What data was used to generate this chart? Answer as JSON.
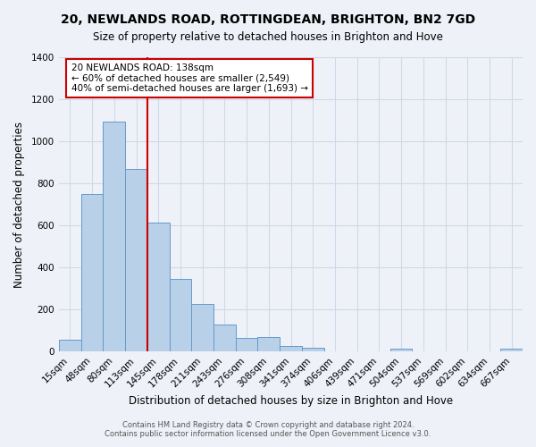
{
  "title": "20, NEWLANDS ROAD, ROTTINGDEAN, BRIGHTON, BN2 7GD",
  "subtitle": "Size of property relative to detached houses in Brighton and Hove",
  "xlabel": "Distribution of detached houses by size in Brighton and Hove",
  "ylabel": "Number of detached properties",
  "bar_labels": [
    "15sqm",
    "48sqm",
    "80sqm",
    "113sqm",
    "145sqm",
    "178sqm",
    "211sqm",
    "243sqm",
    "276sqm",
    "308sqm",
    "341sqm",
    "374sqm",
    "406sqm",
    "439sqm",
    "471sqm",
    "504sqm",
    "537sqm",
    "569sqm",
    "602sqm",
    "634sqm",
    "667sqm"
  ],
  "bar_values": [
    55,
    750,
    1095,
    870,
    615,
    345,
    228,
    130,
    65,
    68,
    25,
    20,
    0,
    0,
    0,
    15,
    0,
    0,
    0,
    0,
    15
  ],
  "bar_color": "#b8d0e8",
  "bar_edge_color": "#6699cc",
  "vline_x": 3.5,
  "vline_color": "#cc0000",
  "annotation_title": "20 NEWLANDS ROAD: 138sqm",
  "annotation_line1": "← 60% of detached houses are smaller (2,549)",
  "annotation_line2": "40% of semi-detached houses are larger (1,693) →",
  "annotation_box_color": "#ffffff",
  "annotation_box_edge": "#cc0000",
  "ylim": [
    0,
    1400
  ],
  "yticks": [
    0,
    200,
    400,
    600,
    800,
    1000,
    1200,
    1400
  ],
  "footer1": "Contains HM Land Registry data © Crown copyright and database right 2024.",
  "footer2": "Contains public sector information licensed under the Open Government Licence v3.0.",
  "bg_color": "#eef2f8",
  "grid_color": "#d0d8e8",
  "title_fontsize": 10,
  "subtitle_fontsize": 8.5,
  "xlabel_fontsize": 8.5,
  "ylabel_fontsize": 8.5,
  "tick_fontsize": 7.5,
  "annot_fontsize": 7.5,
  "footer_fontsize": 6
}
